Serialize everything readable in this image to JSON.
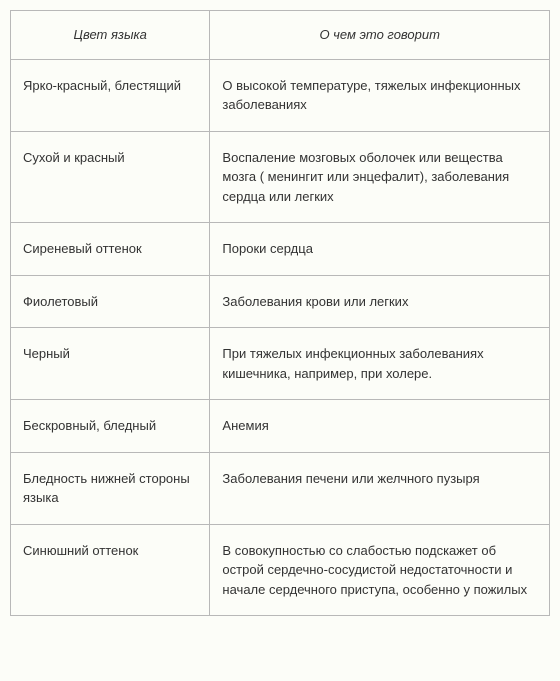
{
  "table": {
    "headers": {
      "col1": "Цвет языка",
      "col2": "О чем это говорит"
    },
    "rows": [
      {
        "color": "Ярко-красный, блестящий",
        "meaning": "О высокой температуре, тяжелых инфекционных заболеваниях"
      },
      {
        "color": "Сухой и красный",
        "meaning": "Воспаление мозговых оболочек или вещества мозга ( менингит или энцефалит), заболевания сердца или легких"
      },
      {
        "color": "Сиреневый оттенок",
        "meaning": "Пороки  сердца"
      },
      {
        "color": "Фиолетовый",
        "meaning": "Заболевания крови или легких"
      },
      {
        "color": "Черный",
        "meaning": "При тяжелых инфекционных заболеваниях кишечника, например, при холере."
      },
      {
        "color": "Бескровный, бледный",
        "meaning": "Анемия"
      },
      {
        "color": "Бледность нижней стороны языка",
        "meaning": "Заболевания печени или желчного пузыря"
      },
      {
        "color": "Синюшний оттенок",
        "meaning": "В совокупностью со слабостью подскажет об острой сердечно-сосудистой недостаточности и начале сердечного приступа, особенно у пожилых"
      }
    ]
  },
  "style": {
    "background_color": "#fcfdf8",
    "border_color": "#b8b8b8",
    "text_color": "#333333",
    "font_size": 13,
    "col1_width": "37%",
    "col2_width": "63%"
  }
}
